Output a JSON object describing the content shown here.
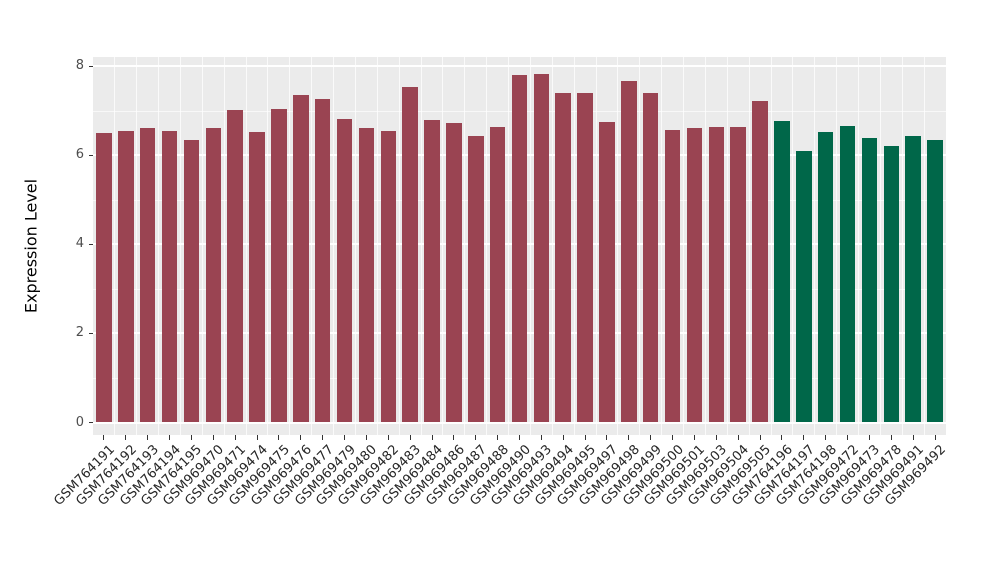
{
  "chart_data": {
    "type": "bar",
    "title": "",
    "xlabel": "",
    "ylabel": "Expression Level",
    "ylim": [
      0,
      8.2
    ],
    "yticks": [
      0,
      2,
      4,
      6,
      8
    ],
    "grid": "on",
    "legend": "none",
    "panel_bg": "#EBEBEB",
    "gridline_color": "#FFFFFF",
    "group_colors": {
      "case": "#9A4452",
      "control": "#006749"
    },
    "categories": [
      "GSM764191",
      "GSM764192",
      "GSM764193",
      "GSM764194",
      "GSM764195",
      "GSM969470",
      "GSM969471",
      "GSM969474",
      "GSM969475",
      "GSM969476",
      "GSM969477",
      "GSM969479",
      "GSM969480",
      "GSM969482",
      "GSM969483",
      "GSM969484",
      "GSM969486",
      "GSM969487",
      "GSM969488",
      "GSM969490",
      "GSM969493",
      "GSM969494",
      "GSM969495",
      "GSM969497",
      "GSM969498",
      "GSM969499",
      "GSM969500",
      "GSM969501",
      "GSM969503",
      "GSM969504",
      "GSM969505",
      "GSM764196",
      "GSM764197",
      "GSM764198",
      "GSM969472",
      "GSM969473",
      "GSM969478",
      "GSM969491",
      "GSM969492"
    ],
    "values": [
      6.5,
      6.55,
      6.62,
      6.55,
      6.33,
      6.62,
      7.02,
      6.53,
      7.03,
      7.36,
      7.25,
      6.81,
      6.62,
      6.55,
      7.52,
      6.78,
      6.72,
      6.44,
      6.64,
      7.8,
      7.82,
      7.4,
      7.4,
      6.74,
      7.66,
      7.4,
      6.57,
      6.62,
      6.63,
      6.64,
      7.22,
      6.76,
      6.1,
      6.51,
      6.66,
      6.38,
      6.2,
      6.44,
      6.33
    ],
    "groups": [
      "case",
      "case",
      "case",
      "case",
      "case",
      "case",
      "case",
      "case",
      "case",
      "case",
      "case",
      "case",
      "case",
      "case",
      "case",
      "case",
      "case",
      "case",
      "case",
      "case",
      "case",
      "case",
      "case",
      "case",
      "case",
      "case",
      "case",
      "case",
      "case",
      "case",
      "case",
      "control",
      "control",
      "control",
      "control",
      "control",
      "control",
      "control",
      "control"
    ]
  }
}
